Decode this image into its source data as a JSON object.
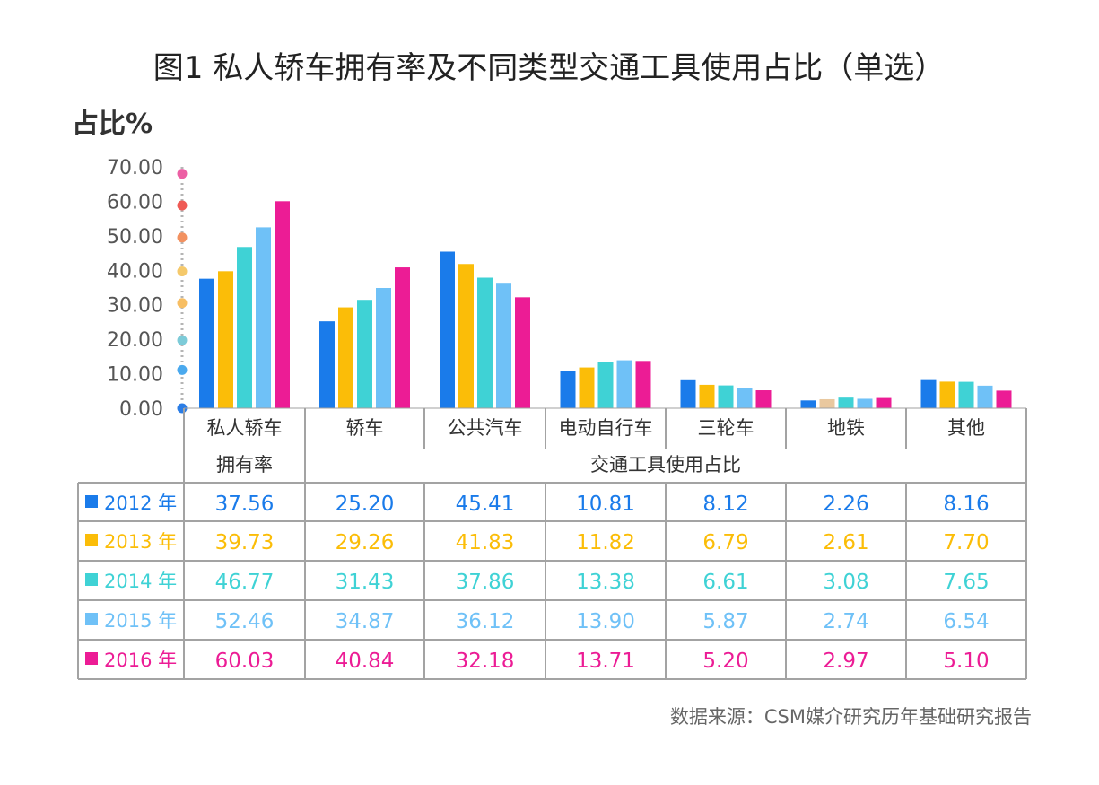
{
  "chart_data": {
    "type": "bar",
    "title": "图1 私人轿车拥有率及不同类型交通工具使用占比（单选）",
    "ylabel": "占比%",
    "ylim": [
      0,
      70
    ],
    "yticks": [
      "0.00",
      "10.00",
      "20.00",
      "30.00",
      "40.00",
      "50.00",
      "60.00",
      "70.00"
    ],
    "categories": [
      "私人轿车",
      "轿车",
      "公共汽车",
      "电动自行车",
      "三轮车",
      "地铁",
      "其他"
    ],
    "group_labels": [
      "拥有率",
      "交通工具使用占比"
    ],
    "series": [
      {
        "name": "2012 年",
        "color": "#1a7bea",
        "values": [
          37.56,
          25.2,
          45.41,
          10.81,
          8.12,
          2.26,
          8.16
        ],
        "labels": [
          "37.56",
          "25.20",
          "45.41",
          "10.81",
          "8.12",
          "2.26",
          "8.16"
        ]
      },
      {
        "name": "2013 年",
        "color": "#fbbd08",
        "values": [
          39.73,
          29.26,
          41.83,
          11.82,
          6.79,
          2.61,
          7.7
        ],
        "labels": [
          "39.73",
          "29.26",
          "41.83",
          "11.82",
          "6.79",
          "2.61",
          "7.70"
        ]
      },
      {
        "name": "2014 年",
        "color": "#3fd2d5",
        "values": [
          46.77,
          31.43,
          37.86,
          13.38,
          6.61,
          3.08,
          7.65
        ],
        "labels": [
          "46.77",
          "31.43",
          "37.86",
          "13.38",
          "6.61",
          "3.08",
          "7.65"
        ]
      },
      {
        "name": "2015 年",
        "color": "#6fc1f7",
        "values": [
          52.46,
          34.87,
          36.12,
          13.9,
          5.87,
          2.74,
          6.54
        ],
        "labels": [
          "52.46",
          "34.87",
          "36.12",
          "13.90",
          "5.87",
          "2.74",
          "6.54"
        ]
      },
      {
        "name": "2016 年",
        "color": "#ec1c95",
        "values": [
          60.03,
          40.84,
          32.18,
          13.71,
          5.2,
          2.97,
          5.1
        ],
        "labels": [
          "60.03",
          "40.84",
          "32.18",
          "13.71",
          "5.20",
          "2.97",
          "5.10"
        ]
      }
    ],
    "axis_dot_colors": [
      "#2b7de6",
      "#4aa9ee",
      "#7dcbd8",
      "#f7be63",
      "#f5c96b",
      "#f29160",
      "#ef5a55",
      "#ec5fa4"
    ],
    "metro_bar_colors": [
      "#1a7bea",
      "#e9c89f",
      "#3fd2d5",
      "#6fc1f7",
      "#ec1c95"
    ],
    "source": "数据来源：CSM媒介研究历年基础研究报告"
  }
}
